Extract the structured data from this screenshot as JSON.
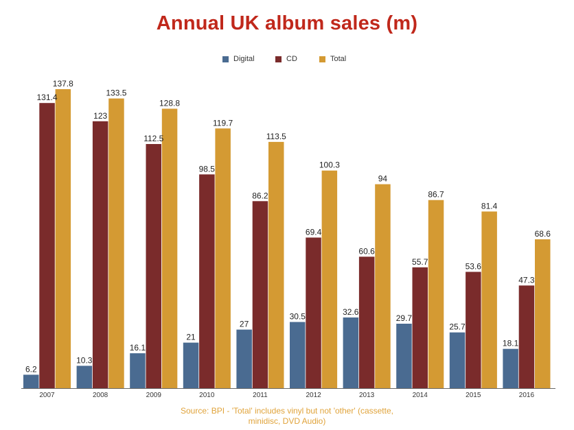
{
  "chart_data": {
    "type": "bar",
    "title": "Annual UK album sales (m)",
    "categories": [
      "2007",
      "2008",
      "2009",
      "2010",
      "2011",
      "2012",
      "2013",
      "2014",
      "2015",
      "2016"
    ],
    "series": [
      {
        "name": "Digital",
        "color": "#4a6b91",
        "values": [
          6.2,
          10.3,
          16.1,
          21,
          27,
          30.5,
          32.6,
          29.7,
          25.7,
          18.1
        ]
      },
      {
        "name": "CD",
        "color": "#7a2b2b",
        "values": [
          131.4,
          123,
          112.5,
          98.5,
          86.2,
          69.4,
          60.6,
          55.7,
          53.6,
          47.3
        ]
      },
      {
        "name": "Total",
        "color": "#d49a33",
        "values": [
          137.8,
          133.5,
          128.8,
          119.7,
          113.5,
          100.3,
          94,
          86.7,
          81.4,
          68.6
        ]
      }
    ],
    "value_labels": {
      "Digital": [
        "6.2",
        "10.3",
        "16.1",
        "21",
        "27",
        "30.5",
        "32.6",
        "29.7",
        "25.7",
        "18.1"
      ],
      "CD": [
        "131.4",
        "123",
        "112.5",
        "98.5",
        "86.2",
        "69.4",
        "60.6",
        "55.7",
        "53.6",
        "47.3"
      ],
      "Total": [
        "137.8",
        "133.5",
        "128.8",
        "119.7",
        "113.5",
        "100.3",
        "94",
        "86.7",
        "81.4",
        "68.6"
      ]
    },
    "ylim": [
      0,
      140
    ],
    "grid": false,
    "legend_position": "top-center",
    "source_lines": [
      "Source: BPI - 'Total' includes vinyl but not 'other' (cassette,",
      "minidisc, DVD Audio)"
    ]
  }
}
